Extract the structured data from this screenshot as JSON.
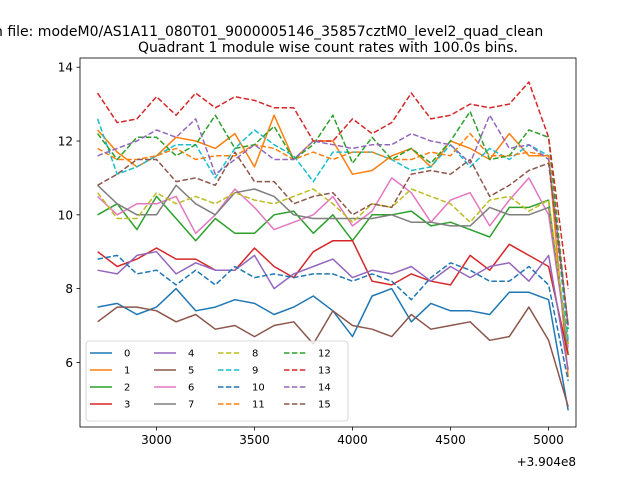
{
  "chart_data": {
    "type": "line",
    "suptitle": "n file: modeM0/AS1A11_080T01_9000005146_35857cztM0_level2_quad_clean",
    "title": "Quadrant 1 module wise count rates with 100.0s bins.",
    "xlabel": "",
    "ylabel": "",
    "x_offset_label": "+3.904e8",
    "xlim": [
      2610,
      5140
    ],
    "ylim": [
      4.25,
      14.25
    ],
    "xticks": [
      3000,
      3500,
      4000,
      4500,
      5000
    ],
    "yticks": [
      6,
      8,
      10,
      12,
      14
    ],
    "x": [
      2700,
      2800,
      2900,
      3000,
      3100,
      3200,
      3300,
      3400,
      3500,
      3600,
      3700,
      3800,
      3900,
      4000,
      4100,
      4200,
      4300,
      4400,
      4500,
      4600,
      4700,
      4800,
      4900,
      5000,
      5100
    ],
    "legend_position": "lower-left",
    "series": [
      {
        "name": "0",
        "color": "#1f77b4",
        "dash": "solid",
        "values": [
          7.5,
          7.6,
          7.3,
          7.5,
          8.0,
          7.4,
          7.5,
          7.7,
          7.6,
          7.3,
          7.5,
          7.8,
          7.4,
          6.7,
          7.8,
          8.0,
          7.1,
          7.6,
          7.4,
          7.4,
          7.3,
          7.9,
          7.9,
          7.7,
          4.7
        ]
      },
      {
        "name": "1",
        "color": "#ff7f0e",
        "dash": "solid",
        "values": [
          12.3,
          11.7,
          11.3,
          11.6,
          12.1,
          12.0,
          11.8,
          12.2,
          11.3,
          12.7,
          11.5,
          12.0,
          12.0,
          11.1,
          11.2,
          11.6,
          11.8,
          11.3,
          12.0,
          11.8,
          11.5,
          12.2,
          11.6,
          11.6,
          5.6
        ]
      },
      {
        "name": "2",
        "color": "#2ca02c",
        "dash": "solid",
        "values": [
          10.0,
          10.3,
          9.6,
          10.5,
          9.9,
          9.3,
          9.9,
          9.5,
          9.5,
          10.0,
          10.1,
          9.5,
          10.0,
          9.3,
          10.0,
          10.0,
          10.1,
          9.7,
          9.8,
          9.6,
          9.4,
          10.2,
          10.2,
          10.4,
          6.2
        ]
      },
      {
        "name": "3",
        "color": "#d62728",
        "dash": "solid",
        "values": [
          9.0,
          8.6,
          8.8,
          9.1,
          8.8,
          8.8,
          8.5,
          8.5,
          9.1,
          8.6,
          8.3,
          9.0,
          9.3,
          9.3,
          8.2,
          8.1,
          8.4,
          8.2,
          8.1,
          8.9,
          8.5,
          9.2,
          8.9,
          8.6,
          6.2
        ]
      },
      {
        "name": "4",
        "color": "#9467bd",
        "dash": "solid",
        "values": [
          8.5,
          8.4,
          8.9,
          9.0,
          8.4,
          8.7,
          8.5,
          8.5,
          8.9,
          8.0,
          8.4,
          8.6,
          8.8,
          8.3,
          8.5,
          8.4,
          8.6,
          8.2,
          8.6,
          8.3,
          8.6,
          8.7,
          8.2,
          8.9,
          5.8
        ]
      },
      {
        "name": "5",
        "color": "#8c564b",
        "dash": "solid",
        "values": [
          7.1,
          7.5,
          7.5,
          7.4,
          7.1,
          7.3,
          6.9,
          7.0,
          6.7,
          7.0,
          7.1,
          6.5,
          7.4,
          7.0,
          6.9,
          6.7,
          7.3,
          6.9,
          7.0,
          7.1,
          6.6,
          6.7,
          7.5,
          6.6,
          4.8
        ]
      },
      {
        "name": "6",
        "color": "#e377c2",
        "dash": "solid",
        "values": [
          10.5,
          10.0,
          10.3,
          10.3,
          10.5,
          9.5,
          10.0,
          10.7,
          10.2,
          9.6,
          9.8,
          10.0,
          10.5,
          9.7,
          10.1,
          11.0,
          10.6,
          9.8,
          10.4,
          10.6,
          9.7,
          10.4,
          11.0,
          10.0,
          6.4
        ]
      },
      {
        "name": "7",
        "color": "#7f7f7f",
        "dash": "solid",
        "values": [
          10.8,
          10.3,
          10.0,
          10.0,
          10.8,
          10.3,
          10.0,
          10.6,
          10.7,
          10.5,
          10.0,
          9.9,
          9.9,
          9.9,
          9.9,
          10.0,
          9.8,
          9.8,
          9.7,
          9.7,
          10.2,
          10.0,
          10.0,
          10.2,
          6.5
        ]
      },
      {
        "name": "8",
        "color": "#bcbd22",
        "dash": "dashed",
        "values": [
          10.6,
          9.9,
          9.9,
          10.6,
          10.3,
          10.5,
          10.3,
          10.6,
          10.4,
          10.3,
          10.5,
          10.7,
          10.3,
          9.8,
          10.3,
          10.2,
          10.7,
          10.5,
          10.3,
          9.8,
          10.4,
          10.5,
          10.1,
          10.4,
          6.5
        ]
      },
      {
        "name": "9",
        "color": "#17becf",
        "dash": "dashed",
        "values": [
          12.6,
          11.1,
          11.3,
          11.6,
          11.9,
          11.9,
          11.0,
          11.8,
          12.3,
          11.9,
          11.6,
          10.9,
          11.7,
          11.7,
          11.7,
          11.5,
          11.2,
          11.3,
          11.9,
          11.3,
          11.8,
          11.5,
          11.9,
          11.6,
          6.6
        ]
      },
      {
        "name": "10",
        "color": "#1f77b4",
        "dash": "dashed",
        "values": [
          8.8,
          8.9,
          8.4,
          8.5,
          8.1,
          8.5,
          8.1,
          8.6,
          8.3,
          8.4,
          8.3,
          8.4,
          8.4,
          8.2,
          8.4,
          8.2,
          7.7,
          8.3,
          8.7,
          8.5,
          8.2,
          8.2,
          8.6,
          8.1,
          5.5
        ]
      },
      {
        "name": "11",
        "color": "#ff7f0e",
        "dash": "dashed",
        "values": [
          11.8,
          11.5,
          11.5,
          11.6,
          11.8,
          11.5,
          11.6,
          11.6,
          11.9,
          11.8,
          11.5,
          11.7,
          11.5,
          11.7,
          11.7,
          11.5,
          11.5,
          11.7,
          11.6,
          12.2,
          11.6,
          11.6,
          11.7,
          11.6,
          7.0
        ]
      },
      {
        "name": "12",
        "color": "#2ca02c",
        "dash": "dashed",
        "values": [
          12.2,
          11.5,
          12.1,
          12.1,
          11.6,
          11.9,
          12.7,
          11.8,
          11.9,
          12.4,
          11.5,
          11.9,
          12.7,
          11.4,
          12.1,
          11.5,
          11.8,
          11.4,
          12.0,
          12.8,
          11.5,
          11.6,
          12.3,
          12.1,
          6.9
        ]
      },
      {
        "name": "13",
        "color": "#d62728",
        "dash": "dashed",
        "values": [
          13.3,
          12.5,
          12.6,
          13.2,
          12.7,
          13.3,
          12.9,
          13.2,
          13.1,
          12.9,
          12.9,
          12.0,
          12.0,
          12.6,
          12.2,
          12.5,
          13.3,
          12.6,
          12.7,
          13.0,
          12.9,
          13.0,
          13.6,
          12.1,
          8.0
        ]
      },
      {
        "name": "14",
        "color": "#9467bd",
        "dash": "dashed",
        "values": [
          11.6,
          11.8,
          12.0,
          12.3,
          12.1,
          12.6,
          11.1,
          11.5,
          11.9,
          11.5,
          11.5,
          12.0,
          11.9,
          11.8,
          11.9,
          11.9,
          12.2,
          12.0,
          11.9,
          11.4,
          12.7,
          11.8,
          11.9,
          11.5,
          7.0
        ]
      },
      {
        "name": "15",
        "color": "#8c564b",
        "dash": "dashed",
        "values": [
          10.8,
          11.1,
          11.5,
          11.5,
          10.9,
          11.0,
          10.8,
          11.7,
          10.9,
          10.9,
          10.3,
          10.5,
          10.6,
          10.0,
          10.3,
          10.2,
          11.1,
          11.2,
          11.1,
          11.5,
          10.5,
          10.8,
          11.2,
          11.4,
          7.0
        ]
      }
    ]
  }
}
